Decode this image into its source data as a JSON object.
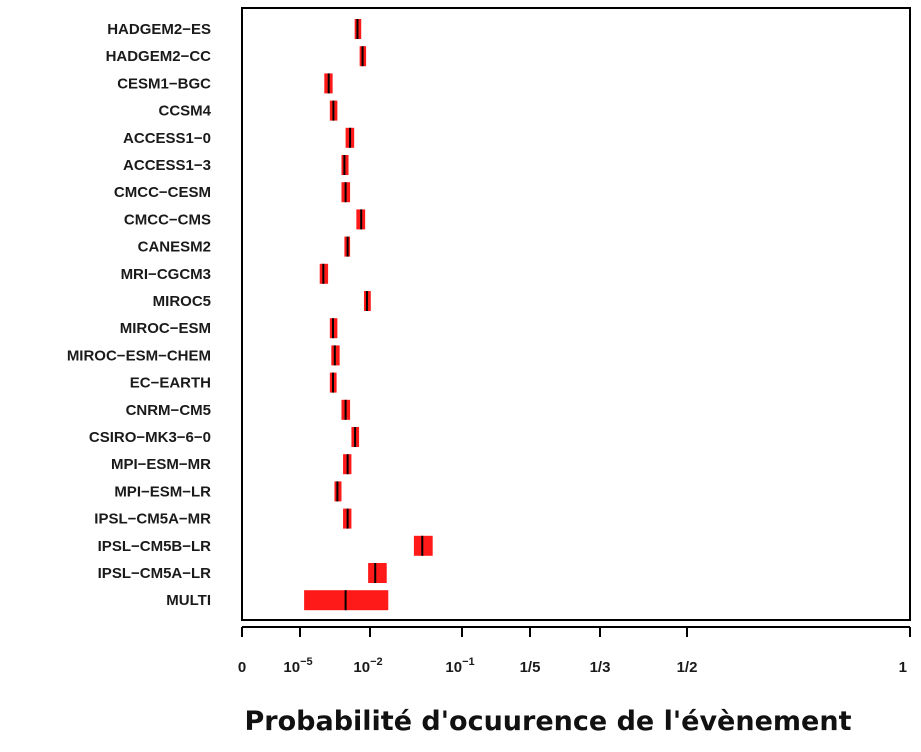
{
  "chart_data": {
    "type": "interval",
    "title": "",
    "xlabel": "Probabilité d'ocuurence de l'évènement",
    "ylabel": "",
    "grid": false,
    "colors": {
      "bar": "#ff1a1a",
      "median": "#000000",
      "axis": "#000000"
    },
    "x_ticks": [
      {
        "value": 0,
        "label": "0"
      },
      {
        "value": 1e-05,
        "label": "10",
        "exp": "−5"
      },
      {
        "value": 0.01,
        "label": "10",
        "exp": "−2"
      },
      {
        "value": 0.1,
        "label": "10",
        "exp": "−1"
      },
      {
        "value": 0.2,
        "label": "1/5"
      },
      {
        "value": 0.3333,
        "label": "1/3"
      },
      {
        "value": 0.5,
        "label": "1/2"
      },
      {
        "value": 1,
        "label": "1"
      }
    ],
    "series": [
      {
        "model": "HADGEM2−ES",
        "low": 0.0022,
        "median": 0.0029,
        "high": 0.0042
      },
      {
        "model": "HADGEM2−CC",
        "low": 0.0036,
        "median": 0.0048,
        "high": 0.0068
      },
      {
        "model": "CESM1−BGC",
        "low": 0.00011,
        "median": 0.00017,
        "high": 0.00025
      },
      {
        "model": "CCSM4",
        "low": 0.00019,
        "median": 0.00027,
        "high": 0.0004
      },
      {
        "model": "ACCESS1−0",
        "low": 0.0009,
        "median": 0.0014,
        "high": 0.0021
      },
      {
        "model": "ACCESS1−3",
        "low": 0.0006,
        "median": 0.0008,
        "high": 0.0012
      },
      {
        "model": "CMCC−CESM",
        "low": 0.0006,
        "median": 0.0009,
        "high": 0.0014
      },
      {
        "model": "CMCC−CMS",
        "low": 0.0026,
        "median": 0.0042,
        "high": 0.0062
      },
      {
        "model": "CANESM2",
        "low": 0.0008,
        "median": 0.0011,
        "high": 0.0014
      },
      {
        "model": "MRI−CGCM3",
        "low": 7e-05,
        "median": 0.0001,
        "high": 0.00016
      },
      {
        "model": "MIROC5",
        "low": 0.0055,
        "median": 0.0074,
        "high": 0.0102
      },
      {
        "model": "MIROC−ESM",
        "low": 0.00019,
        "median": 0.00026,
        "high": 0.0004
      },
      {
        "model": "MIROC−ESM−CHEM",
        "low": 0.00022,
        "median": 0.00031,
        "high": 0.0005
      },
      {
        "model": "EC−EARTH",
        "low": 0.00019,
        "median": 0.00026,
        "high": 0.00037
      },
      {
        "model": "CNRM−CM5",
        "low": 0.0006,
        "median": 0.0009,
        "high": 0.0014
      },
      {
        "model": "CSIRO−MK3−6−0",
        "low": 0.0016,
        "median": 0.0023,
        "high": 0.0034
      },
      {
        "model": "MPI−ESM−MR",
        "low": 0.0007,
        "median": 0.0011,
        "high": 0.0016
      },
      {
        "model": "MPI−ESM−LR",
        "low": 0.0003,
        "median": 0.0004,
        "high": 0.0006
      },
      {
        "model": "IPSL−CM5A−MR",
        "low": 0.0007,
        "median": 0.0011,
        "high": 0.0016
      },
      {
        "model": "IPSL−CM5B−LR",
        "low": 0.03,
        "median": 0.037,
        "high": 0.048
      },
      {
        "model": "IPSL−CM5A−LR",
        "low": 0.0083,
        "median": 0.0114,
        "high": 0.0152
      },
      {
        "model": "MULTI",
        "low": 1.5e-05,
        "median": 0.0009,
        "high": 0.0158
      }
    ]
  }
}
